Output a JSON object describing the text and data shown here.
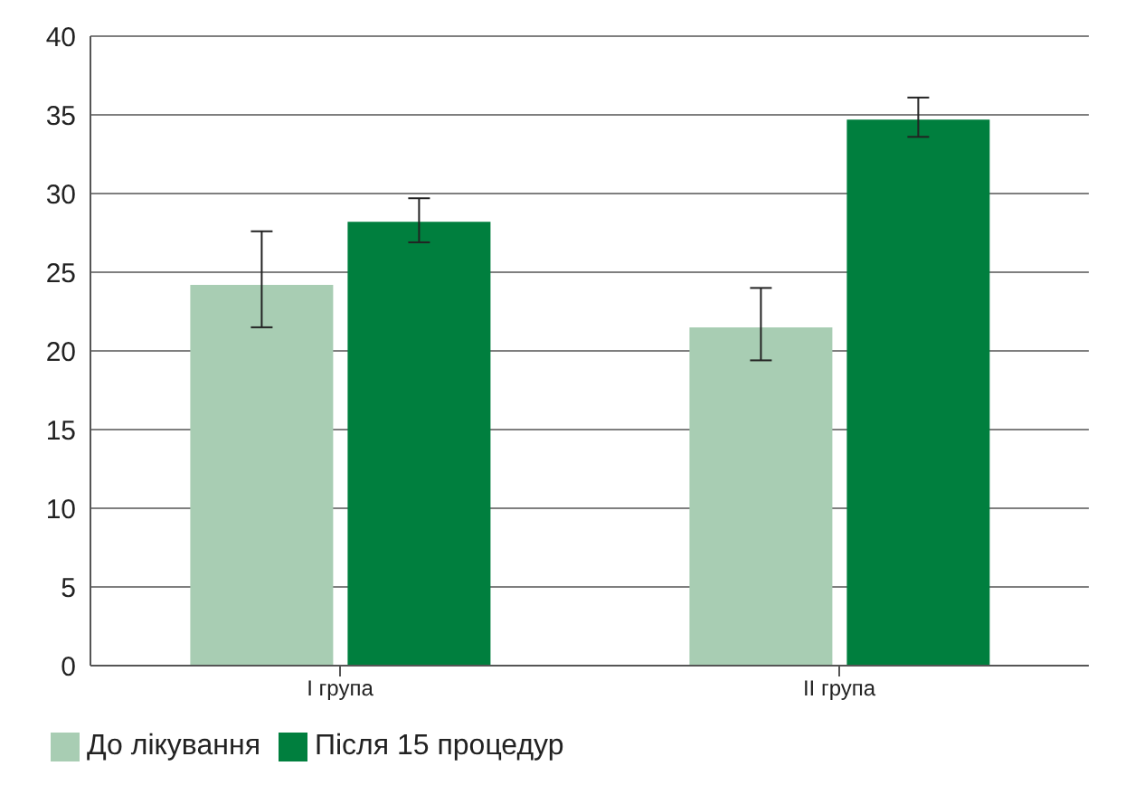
{
  "chart_data": {
    "type": "bar",
    "categories": [
      "I група",
      "II група"
    ],
    "series": [
      {
        "name": "До лікування",
        "color": "#a8cdb3",
        "values": [
          24.2,
          21.5
        ],
        "errors": [
          [
            21.5,
            27.6
          ],
          [
            19.4,
            24.0
          ]
        ]
      },
      {
        "name": "Після 15 процедур",
        "color": "#007f3e",
        "values": [
          28.2,
          34.7
        ],
        "errors": [
          [
            26.9,
            29.7
          ],
          [
            33.6,
            36.1
          ]
        ]
      }
    ],
    "ylim": [
      0,
      40
    ],
    "yticks": [
      0,
      5,
      10,
      15,
      20,
      25,
      30,
      35,
      40
    ],
    "grid": "y",
    "legend": "bottom left"
  }
}
